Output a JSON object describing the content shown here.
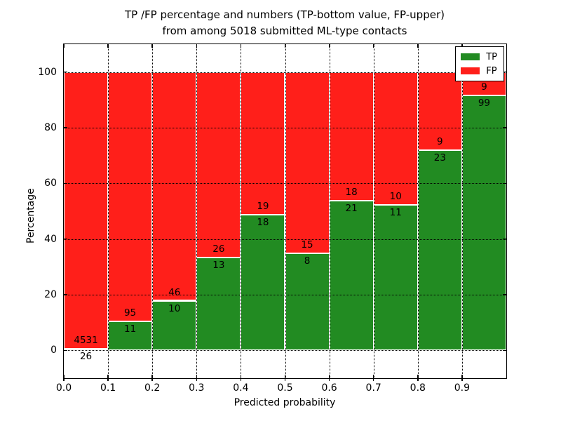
{
  "title": {
    "line1": "TP /FP percentage and numbers (TP-bottom value, FP-upper)",
    "line2": "from among 5018 submitted ML-type contacts"
  },
  "axes": {
    "x_label": "Predicted probability",
    "y_label": "Percentage",
    "x_tick_labels": [
      "0.0",
      "0.1",
      "0.2",
      "0.3",
      "0.4",
      "0.5",
      "0.6",
      "0.7",
      "0.8",
      "0.9"
    ],
    "y_tick_labels": [
      "0",
      "20",
      "40",
      "60",
      "80",
      "100"
    ],
    "y_tick_values": [
      0,
      20,
      40,
      60,
      80,
      100
    ],
    "xlim": [
      0.0,
      1.0
    ],
    "ylim": [
      -10,
      110
    ],
    "grid_style": "dotted"
  },
  "legend": {
    "position": "upper right",
    "items": [
      {
        "label": "TP",
        "color": "#228b22"
      },
      {
        "label": "FP",
        "color": "#ff1f1a"
      }
    ]
  },
  "chart_data": {
    "type": "bar",
    "stacked": true,
    "title": "TP /FP percentage and numbers (TP-bottom value, FP-upper) from among 5018 submitted ML-type contacts",
    "xlabel": "Predicted probability",
    "ylabel": "Percentage",
    "categories": [
      "0.0",
      "0.1",
      "0.2",
      "0.3",
      "0.4",
      "0.5",
      "0.6",
      "0.7",
      "0.8",
      "0.9"
    ],
    "bin_starts": [
      0.0,
      0.1,
      0.2,
      0.3,
      0.4,
      0.5,
      0.6,
      0.7,
      0.8,
      0.9
    ],
    "bin_width": 0.1,
    "series": [
      {
        "name": "TP",
        "color": "#228b22",
        "counts": [
          26,
          11,
          10,
          13,
          18,
          8,
          21,
          11,
          23,
          99
        ]
      },
      {
        "name": "FP",
        "color": "#ff1f1a",
        "counts": [
          4531,
          95,
          46,
          26,
          19,
          15,
          18,
          10,
          9,
          9
        ]
      }
    ],
    "tp_percent": [
      0.57,
      10.38,
      17.86,
      33.33,
      48.65,
      34.78,
      53.85,
      52.38,
      71.88,
      91.67
    ],
    "fp_percent": [
      99.43,
      89.62,
      82.14,
      66.67,
      51.35,
      65.22,
      46.15,
      47.62,
      28.12,
      8.33
    ],
    "total_contacts": 5018,
    "xlim": [
      0.0,
      1.0
    ],
    "ylim": [
      -10,
      110
    ],
    "grid": true,
    "legend_position": "upper right"
  }
}
